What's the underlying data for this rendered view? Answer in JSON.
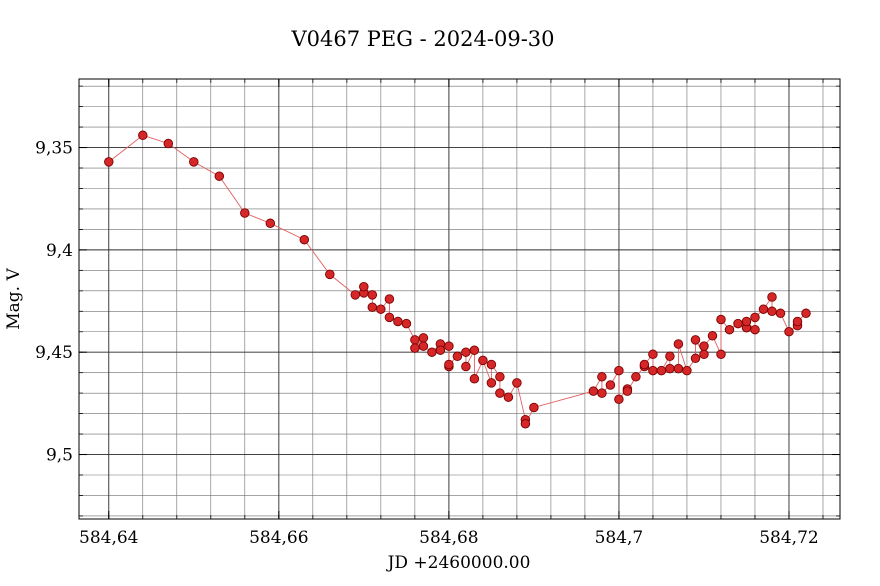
{
  "chart_data": {
    "type": "scatter",
    "title": "V0467 PEG - 2024-09-30",
    "xlabel": "JD +2460000.00",
    "ylabel": "Mag. V",
    "xlim": [
      584.6365,
      584.726
    ],
    "ylim": [
      9.5315,
      9.3165
    ],
    "y_inverted": true,
    "grid": true,
    "x_ticks": [
      584.64,
      584.66,
      584.68,
      584.7,
      584.72
    ],
    "x_tick_labels": [
      "584,64",
      "584,66",
      "584,68",
      "584,7",
      "584,72"
    ],
    "y_ticks": [
      9.35,
      9.4,
      9.45,
      9.5
    ],
    "y_tick_labels": [
      "9,35",
      "9,4",
      "9,45",
      "9,5"
    ],
    "colors": {
      "marker_fill": "#d62728",
      "marker_edge": "#7a0000",
      "line": "#e06060",
      "grid": "#555555"
    },
    "series": [
      {
        "connected": true,
        "x": [
          584.64,
          584.644,
          584.647,
          584.65,
          584.653,
          584.656,
          584.659,
          584.663,
          584.666,
          584.669,
          584.67,
          584.67,
          584.671,
          584.671,
          584.672,
          584.673,
          584.673,
          584.674,
          584.675,
          584.676,
          584.676,
          584.677,
          584.677,
          584.678,
          584.679,
          584.679,
          584.68,
          584.68,
          584.68,
          584.681,
          584.682,
          584.682,
          584.683,
          584.683,
          584.684,
          584.685,
          584.685,
          584.686,
          584.686,
          584.687,
          584.688,
          584.689,
          584.689,
          584.69,
          584.697,
          584.698,
          584.698,
          584.699,
          584.7,
          584.7,
          584.701,
          584.701,
          584.702,
          584.703,
          584.703,
          584.704,
          584.704,
          584.705,
          584.706,
          584.706,
          584.707,
          584.707,
          584.708,
          584.709,
          584.709,
          584.71,
          584.71,
          584.711,
          584.712,
          584.712,
          584.713,
          584.714,
          584.715,
          584.715,
          584.716,
          584.716,
          584.717,
          584.718,
          584.718,
          584.719,
          584.72,
          584.721,
          584.721,
          584.722
        ],
        "y": [
          9.357,
          9.344,
          9.348,
          9.357,
          9.364,
          9.382,
          9.387,
          9.395,
          9.412,
          9.422,
          9.421,
          9.418,
          9.422,
          9.428,
          9.429,
          9.424,
          9.433,
          9.435,
          9.436,
          9.444,
          9.448,
          9.443,
          9.447,
          9.45,
          9.446,
          9.449,
          9.447,
          9.457,
          9.456,
          9.452,
          9.45,
          9.457,
          9.449,
          9.463,
          9.454,
          9.465,
          9.456,
          9.462,
          9.47,
          9.472,
          9.465,
          9.483,
          9.485,
          9.477,
          9.469,
          9.462,
          9.47,
          9.466,
          9.459,
          9.473,
          9.468,
          9.469,
          9.462,
          9.457,
          9.456,
          9.451,
          9.459,
          9.459,
          9.452,
          9.458,
          9.458,
          9.446,
          9.459,
          9.453,
          9.444,
          9.451,
          9.447,
          9.442,
          9.451,
          9.434,
          9.439,
          9.436,
          9.438,
          9.435,
          9.439,
          9.433,
          9.429,
          9.423,
          9.43,
          9.431,
          9.44,
          9.437,
          9.435,
          9.431
        ]
      }
    ]
  }
}
